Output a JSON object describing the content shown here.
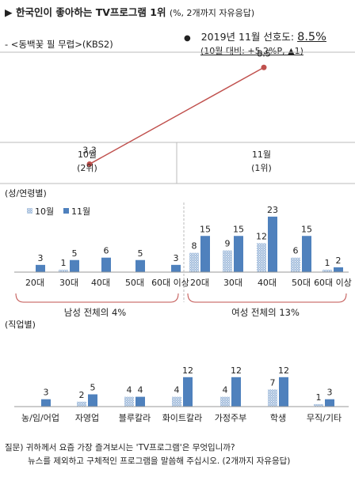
{
  "header": {
    "title_marker": "▶",
    "title": "한국인이 좋아하는 TV프로그램 1위",
    "title_note": "(%, 2개까지 자유응답)",
    "program": "- <동백꽃 필 무렵>(KBS2)",
    "bullet": "●",
    "rating_label": "2019년 11월 선호도:",
    "rating_value": "8.5%",
    "change_note": "(10월 대비: +5.2%P, ▲1)"
  },
  "question": {
    "line1": "질문) 귀하께서 요즘 가장 즐겨보시는 'TV프로그램'은 무엇입니까?",
    "line2": "뉴스를 제외하고 구체적인 프로그램을 말씀해 주십시오. (2개까지 자유응답)"
  },
  "colors": {
    "line": "#c0504d",
    "oct_fill": "#a6bfdd",
    "oct_pattern": "#ffffff",
    "nov_fill": "#4f81bd",
    "axis": "#999999",
    "bracket": "#c0504d"
  },
  "chart_data": [
    {
      "type": "line",
      "categories": [
        "10월",
        "11월"
      ],
      "category_sublabels": [
        "(2위)",
        "(1위)"
      ],
      "values": [
        3.3,
        8.5
      ],
      "ylim": [
        0,
        10
      ]
    },
    {
      "type": "bar",
      "title": "(성/연령별)",
      "legend": {
        "position": "top-left"
      },
      "categories": [
        "20대",
        "30대",
        "40대",
        "50대",
        "60대 이상",
        "20대",
        "30대",
        "40대",
        "50대",
        "60대 이상"
      ],
      "groups": [
        {
          "label": "남성 전체의 4%",
          "category_range": [
            0,
            4
          ]
        },
        {
          "label": "여성 전체의 13%",
          "category_range": [
            5,
            9
          ]
        }
      ],
      "series": [
        {
          "name": "10월",
          "values": [
            0,
            1,
            0,
            0,
            0,
            8,
            9,
            12,
            6,
            1
          ],
          "labels": [
            null,
            "1",
            null,
            null,
            null,
            "8",
            "9",
            "12",
            "6",
            "1"
          ]
        },
        {
          "name": "11월",
          "values": [
            3,
            5,
            6,
            5,
            3,
            15,
            15,
            23,
            15,
            2
          ],
          "labels": [
            "3",
            "5",
            "6",
            "5",
            "3",
            "15",
            "15",
            "23",
            "15",
            "2"
          ]
        }
      ],
      "ylim": [
        0,
        25
      ]
    },
    {
      "type": "bar",
      "title": "(직업별)",
      "categories": [
        "농/임/어업",
        "자영업",
        "블루칼라",
        "화이트칼라",
        "가정주부",
        "학생",
        "무직/기타"
      ],
      "series": [
        {
          "name": "10월",
          "values": [
            0,
            2,
            4,
            4,
            4,
            7,
            1
          ],
          "labels": [
            null,
            "2",
            "4",
            "4",
            "4",
            "7",
            "1"
          ]
        },
        {
          "name": "11월",
          "values": [
            3,
            5,
            4,
            12,
            12,
            12,
            3
          ],
          "labels": [
            "3",
            "5",
            "4",
            "12",
            "12",
            "12",
            "3"
          ]
        }
      ],
      "ylim": [
        0,
        14
      ]
    }
  ]
}
